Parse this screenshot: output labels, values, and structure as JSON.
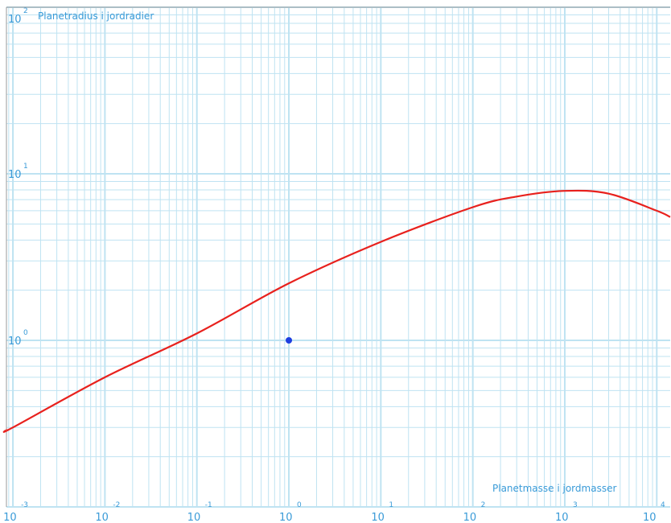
{
  "chart_data": {
    "type": "line",
    "title": "",
    "xlabel": "Planetmasse i jordmasser",
    "ylabel": "Planetradius i jordradier",
    "x_scale": "log",
    "y_scale": "log",
    "xlim": [
      0.00085,
      14000
    ],
    "ylim": [
      0.1,
      100
    ],
    "x_ticks": [
      {
        "base": "10",
        "exp": "-3"
      },
      {
        "base": "10",
        "exp": "-2"
      },
      {
        "base": "10",
        "exp": "-1"
      },
      {
        "base": "10",
        "exp": "0"
      },
      {
        "base": "10",
        "exp": "1"
      },
      {
        "base": "10",
        "exp": "2"
      },
      {
        "base": "10",
        "exp": "3"
      },
      {
        "base": "10",
        "exp": "4"
      }
    ],
    "y_ticks": [
      {
        "base": "10",
        "exp": "0"
      },
      {
        "base": "10",
        "exp": "1"
      },
      {
        "base": "10",
        "exp": "2"
      }
    ],
    "grid": true,
    "grid_color": "#bfe3f2",
    "axis_text_color": "#3a9bd8",
    "series": [
      {
        "color": "#e8211d",
        "x": [
          0.00085,
          0.001,
          0.01,
          0.1,
          1,
          10,
          100,
          300,
          1000,
          3000,
          10000,
          14000
        ],
        "y": [
          0.29,
          0.3,
          0.6,
          1.1,
          2.2,
          3.9,
          6.3,
          7.3,
          7.9,
          7.6,
          6.0,
          5.5
        ]
      }
    ],
    "points": [
      {
        "x": 1,
        "y": 1,
        "color": "#1f3fe0"
      }
    ]
  }
}
